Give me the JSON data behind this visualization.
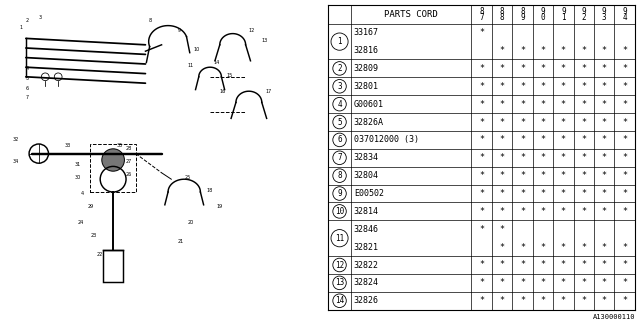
{
  "bg_color": "#ffffff",
  "col_header": "PARTS CORD",
  "year_cols": [
    "8\n7",
    "8\n8",
    "8\n9",
    "9\n0",
    "9\n1",
    "9\n2",
    "9\n3",
    "9\n4"
  ],
  "rows": [
    {
      "num": "1",
      "parts": [
        "33167",
        "32816"
      ],
      "stars": [
        [
          "*",
          "",
          "",
          "",
          "",
          "",
          "",
          ""
        ],
        [
          "",
          "*",
          "*",
          "*",
          "*",
          "*",
          "*",
          "*"
        ]
      ]
    },
    {
      "num": "2",
      "parts": [
        "32809"
      ],
      "stars": [
        [
          "*",
          "*",
          "*",
          "*",
          "*",
          "*",
          "*",
          "*"
        ]
      ]
    },
    {
      "num": "3",
      "parts": [
        "32801"
      ],
      "stars": [
        [
          "*",
          "*",
          "*",
          "*",
          "*",
          "*",
          "*",
          "*"
        ]
      ]
    },
    {
      "num": "4",
      "parts": [
        "G00601"
      ],
      "stars": [
        [
          "*",
          "*",
          "*",
          "*",
          "*",
          "*",
          "*",
          "*"
        ]
      ]
    },
    {
      "num": "5",
      "parts": [
        "32826A"
      ],
      "stars": [
        [
          "*",
          "*",
          "*",
          "*",
          "*",
          "*",
          "*",
          "*"
        ]
      ]
    },
    {
      "num": "6",
      "parts": [
        "037012000 (3)"
      ],
      "stars": [
        [
          "*",
          "*",
          "*",
          "*",
          "*",
          "*",
          "*",
          "*"
        ]
      ]
    },
    {
      "num": "7",
      "parts": [
        "32834"
      ],
      "stars": [
        [
          "*",
          "*",
          "*",
          "*",
          "*",
          "*",
          "*",
          "*"
        ]
      ]
    },
    {
      "num": "8",
      "parts": [
        "32804"
      ],
      "stars": [
        [
          "*",
          "*",
          "*",
          "*",
          "*",
          "*",
          "*",
          "*"
        ]
      ]
    },
    {
      "num": "9",
      "parts": [
        "E00502"
      ],
      "stars": [
        [
          "*",
          "*",
          "*",
          "*",
          "*",
          "*",
          "*",
          "*"
        ]
      ]
    },
    {
      "num": "10",
      "parts": [
        "32814"
      ],
      "stars": [
        [
          "*",
          "*",
          "*",
          "*",
          "*",
          "*",
          "*",
          "*"
        ]
      ]
    },
    {
      "num": "11",
      "parts": [
        "32846",
        "32821"
      ],
      "stars": [
        [
          "*",
          "*",
          "",
          "",
          "",
          "",
          "",
          ""
        ],
        [
          "",
          "*",
          "*",
          "*",
          "*",
          "*",
          "*",
          "*"
        ]
      ]
    },
    {
      "num": "12",
      "parts": [
        "32822"
      ],
      "stars": [
        [
          "*",
          "*",
          "*",
          "*",
          "*",
          "*",
          "*",
          "*"
        ]
      ]
    },
    {
      "num": "13",
      "parts": [
        "32824"
      ],
      "stars": [
        [
          "*",
          "*",
          "*",
          "*",
          "*",
          "*",
          "*",
          "*"
        ]
      ]
    },
    {
      "num": "14",
      "parts": [
        "32826"
      ],
      "stars": [
        [
          "*",
          "*",
          "*",
          "*",
          "*",
          "*",
          "*",
          "*"
        ]
      ]
    }
  ],
  "footer": "A130000110",
  "line_color": "#000000",
  "text_color": "#000000",
  "font_size_small": 5.5,
  "font_size_part": 6.0,
  "font_size_header": 6.5
}
